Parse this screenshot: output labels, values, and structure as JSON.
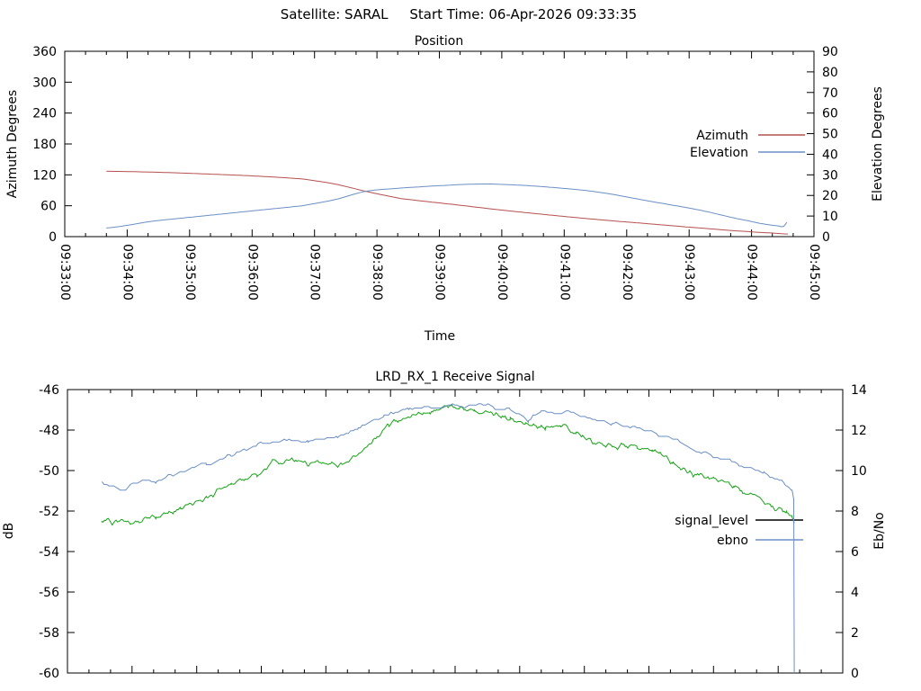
{
  "header": {
    "title": "Satellite: SARAL     Start Time: 06-Apr-2026 09:33:35"
  },
  "colors": {
    "azimuth": "#b5504d",
    "elevation": "#6b8fc5",
    "signal_level": "#17a317",
    "ebno": "#6b8fc5",
    "signal_level_legend_sample": "#000000",
    "axis": "#000000",
    "background": "#ffffff"
  },
  "chart_data": [
    {
      "id": "position",
      "type": "line",
      "title": "Position",
      "xlabel": "Time",
      "x_range_s": [
        0,
        720
      ],
      "x_major_s": 60,
      "x_minor_s": 20,
      "x_tick_labels": [
        "09:33:00",
        "09:34:00",
        "09:35:00",
        "09:36:00",
        "09:37:00",
        "09:38:00",
        "09:39:00",
        "09:40:00",
        "09:41:00",
        "09:42:00",
        "09:43:00",
        "09:44:00",
        "09:45:00"
      ],
      "y_left": {
        "label": "Azimuth Degrees",
        "min": 0,
        "max": 360,
        "step": 60
      },
      "y_right": {
        "label": "Elevation Degrees",
        "min": 0,
        "max": 90,
        "step": 10
      },
      "legend": [
        {
          "label": "Azimuth",
          "sample_color": "#b5504d"
        },
        {
          "label": "Elevation",
          "sample_color": "#6b8fc5"
        }
      ],
      "series": [
        {
          "name": "azimuth",
          "axis": "left",
          "color": "#b5504d",
          "smooth": true,
          "points": [
            [
              40,
              127
            ],
            [
              90,
              125
            ],
            [
              132,
              122
            ],
            [
              180,
              118
            ],
            [
              228,
              112
            ],
            [
              260,
              102
            ],
            [
              289,
              88
            ],
            [
              323,
              74
            ],
            [
              371,
              63
            ],
            [
              418,
              52
            ],
            [
              466,
              42
            ],
            [
              513,
              33
            ],
            [
              561,
              25
            ],
            [
              609,
              17
            ],
            [
              656,
              10
            ],
            [
              680,
              7
            ],
            [
              695,
              5
            ]
          ]
        },
        {
          "name": "elevation",
          "axis": "right",
          "color": "#6b8fc5",
          "smooth": true,
          "points": [
            [
              40,
              4.2
            ],
            [
              85,
              7.5
            ],
            [
              132,
              10
            ],
            [
              180,
              12.5
            ],
            [
              228,
              15
            ],
            [
              260,
              18
            ],
            [
              289,
              22
            ],
            [
              323,
              23.6
            ],
            [
              371,
              25
            ],
            [
              395,
              25.5
            ],
            [
              418,
              25.4
            ],
            [
              466,
              24
            ],
            [
              513,
              21.6
            ],
            [
              561,
              17.3
            ],
            [
              609,
              13
            ],
            [
              656,
              7.8
            ],
            [
              686,
              5.2
            ],
            [
              691,
              5.0
            ],
            [
              694,
              7.0
            ]
          ]
        }
      ]
    },
    {
      "id": "receive_signal",
      "type": "line",
      "title": "LRD_RX_1 Receive Signal",
      "xlabel": "",
      "x_range_s": [
        0,
        720
      ],
      "x_major_s": 60,
      "x_minor_s": 20,
      "x_tick_labels": [],
      "y_left": {
        "label": "dB",
        "min": -60,
        "max": -46,
        "step": 2
      },
      "y_right": {
        "label": "Eb/No",
        "min": 0,
        "max": 14,
        "step": 2
      },
      "legend": [
        {
          "label": "signal_level",
          "sample_color": "#000000"
        },
        {
          "label": "ebno",
          "sample_color": "#6b8fc5"
        }
      ],
      "series": [
        {
          "name": "signal_level",
          "axis": "left",
          "color": "#17a317",
          "smooth": false,
          "noise": 0.2,
          "sample_s": 1.2,
          "points": [
            [
              32,
              -52.5
            ],
            [
              58,
              -52.6
            ],
            [
              82,
              -52.3
            ],
            [
              105,
              -51.9
            ],
            [
              129,
              -51.4
            ],
            [
              152,
              -50.6
            ],
            [
              176,
              -50.2
            ],
            [
              190,
              -49.6
            ],
            [
              209,
              -49.5
            ],
            [
              223,
              -49.7
            ],
            [
              237,
              -49.6
            ],
            [
              251,
              -49.8
            ],
            [
              270,
              -49.2
            ],
            [
              284,
              -48.5
            ],
            [
              298,
              -47.7
            ],
            [
              317,
              -47.3
            ],
            [
              336,
              -47.1
            ],
            [
              350,
              -46.75
            ],
            [
              364,
              -46.85
            ],
            [
              378,
              -47.0
            ],
            [
              397,
              -47.25
            ],
            [
              411,
              -47.4
            ],
            [
              425,
              -47.7
            ],
            [
              444,
              -47.85
            ],
            [
              458,
              -47.8
            ],
            [
              472,
              -48.1
            ],
            [
              487,
              -48.6
            ],
            [
              506,
              -48.8
            ],
            [
              529,
              -48.8
            ],
            [
              543,
              -49.0
            ],
            [
              562,
              -49.6
            ],
            [
              581,
              -50.2
            ],
            [
              600,
              -50.4
            ],
            [
              619,
              -50.8
            ],
            [
              637,
              -51.3
            ],
            [
              656,
              -51.8
            ],
            [
              668,
              -52.1
            ],
            [
              673,
              -52.3
            ],
            [
              675,
              -52.6
            ]
          ]
        },
        {
          "name": "ebno",
          "axis": "right",
          "color": "#6b8fc5",
          "smooth": false,
          "noise": 0.15,
          "quantize": 0.07,
          "sample_s": 2.2,
          "points": [
            [
              32,
              9.4
            ],
            [
              49,
              9.0
            ],
            [
              63,
              9.4
            ],
            [
              82,
              9.5
            ],
            [
              105,
              9.9
            ],
            [
              129,
              10.3
            ],
            [
              152,
              10.75
            ],
            [
              176,
              11.3
            ],
            [
              199,
              11.5
            ],
            [
              223,
              11.45
            ],
            [
              251,
              11.6
            ],
            [
              270,
              12.1
            ],
            [
              294,
              12.75
            ],
            [
              317,
              13.05
            ],
            [
              345,
              13.2
            ],
            [
              388,
              13.2
            ],
            [
              411,
              13.0
            ],
            [
              428,
              12.45
            ],
            [
              440,
              12.9
            ],
            [
              468,
              12.85
            ],
            [
              506,
              12.3
            ],
            [
              529,
              12.15
            ],
            [
              553,
              11.75
            ],
            [
              576,
              11.2
            ],
            [
              600,
              10.75
            ],
            [
              623,
              10.3
            ],
            [
              647,
              9.9
            ],
            [
              666,
              9.4
            ],
            [
              673,
              9.0
            ],
            [
              674.5,
              8.6
            ],
            [
              675,
              0
            ]
          ]
        }
      ]
    }
  ]
}
